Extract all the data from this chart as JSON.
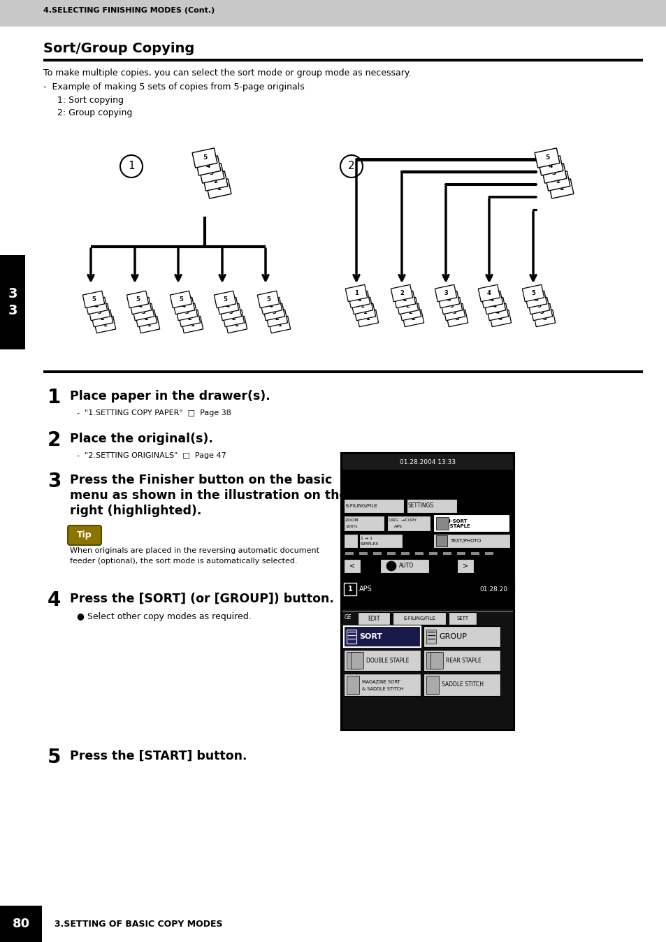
{
  "header_text": "4.SELECTING FINISHING MODES (Cont.)",
  "header_bg": "#c8c8c8",
  "section_title": "Sort/Group Copying",
  "white": "#ffffff",
  "black": "#000000",
  "gray_header": "#c8c8c8",
  "gray_light": "#d0d0d0",
  "intro_text": "To make multiple copies, you can select the sort mode or group mode as necessary.",
  "bullet_text": "-  Example of making 5 sets of copies from 5-page originals",
  "item1": "1: Sort copying",
  "item2": "2: Group copying",
  "step1_bold": "Place paper in the drawer(s).",
  "step1_sub": "-  \"1.SETTING COPY PAPER\"  □  Page 38",
  "step2_bold": "Place the original(s).",
  "step2_sub": "-  \"2.SETTING ORIGINALS\"  □  Page 47",
  "step3_bold_1": "Press the Finisher button on the basic",
  "step3_bold_2": "menu as shown in the illustration on the",
  "step3_bold_3": "right (highlighted).",
  "tip_label": "Tip",
  "tip_text_1": "When originals are placed in the reversing automatic document",
  "tip_text_2": "feeder (optional), the sort mode is automatically selected.",
  "step4_bold": "Press the [SORT] (or [GROUP]) button.",
  "step4_sub": "● Select other copy modes as required.",
  "step5_bold": "Press the [START] button.",
  "footer_page": "80",
  "footer_text": "3.SETTING OF BASIC COPY MODES",
  "left_tab": "3",
  "tip_color": "#8B7500"
}
